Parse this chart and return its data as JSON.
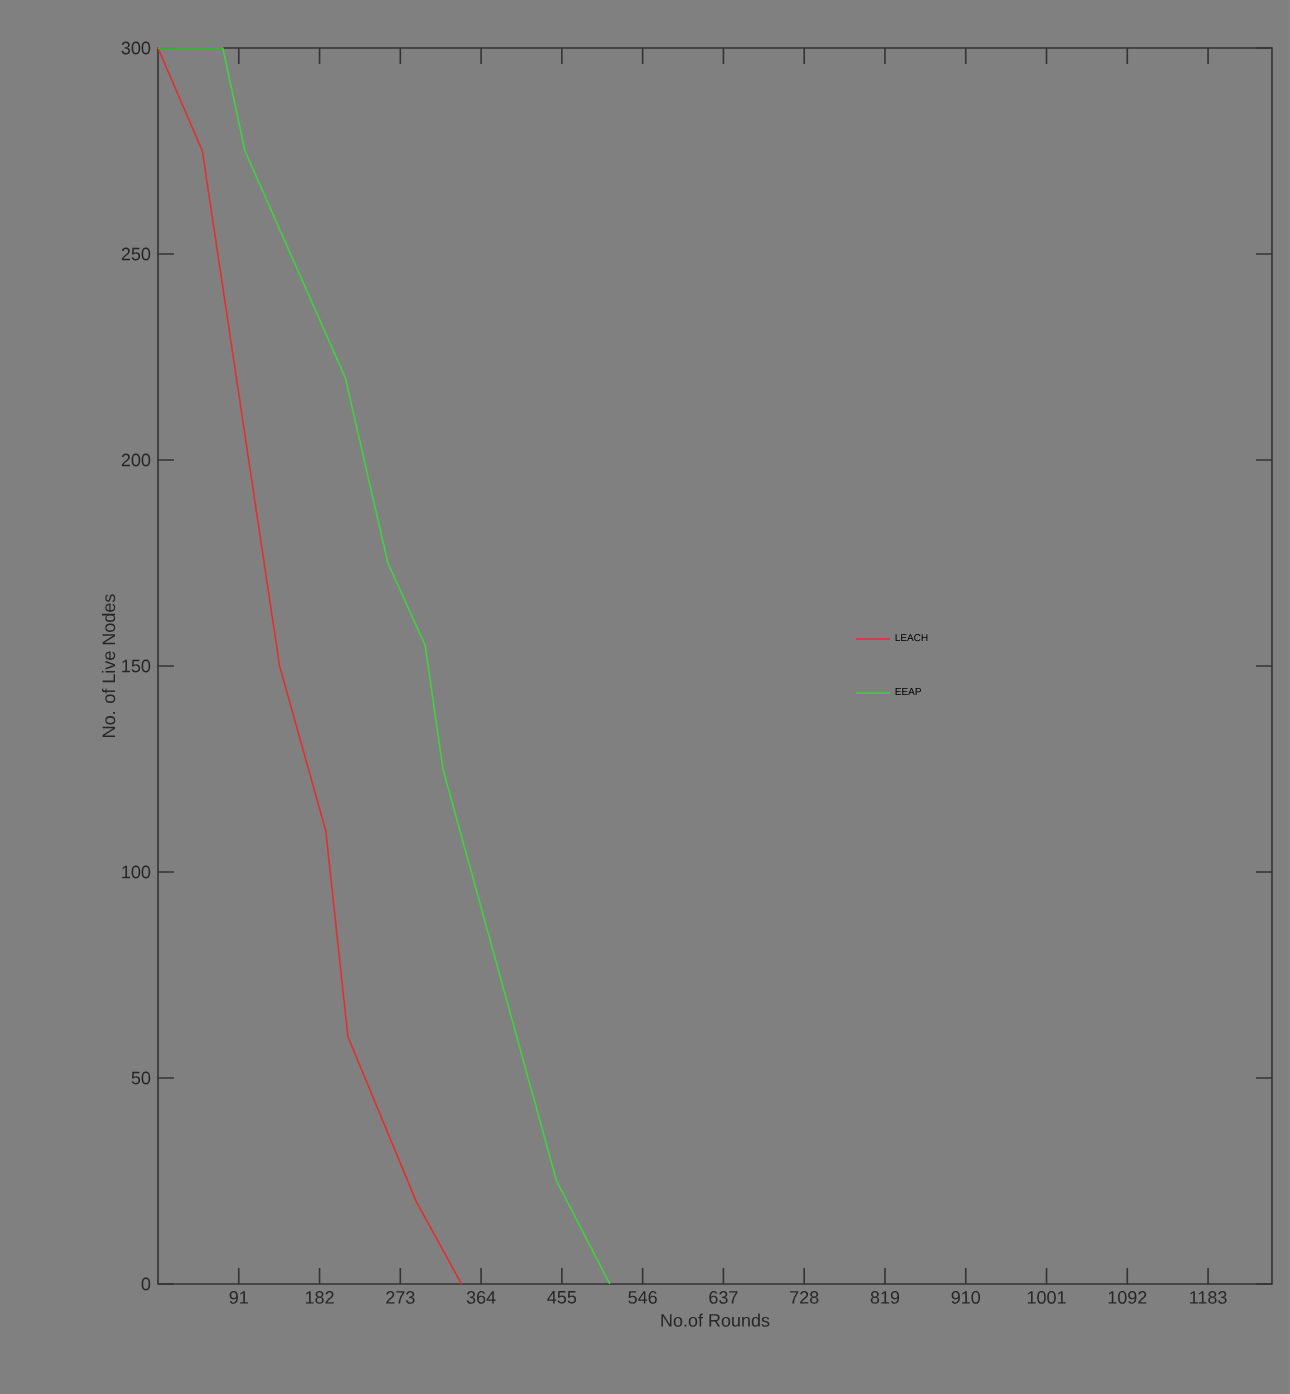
{
  "chart_data": {
    "type": "line",
    "xlabel": "No.of Rounds",
    "ylabel": "No. of Live Nodes",
    "xlim": [
      0,
      1255
    ],
    "xticks": [
      91,
      182,
      273,
      364,
      455,
      546,
      637,
      728,
      819,
      910,
      1001,
      1092,
      1183
    ],
    "ylim": [
      0,
      300
    ],
    "yticks": [
      0,
      50,
      100,
      150,
      200,
      250,
      300
    ],
    "grid": false,
    "legend": "right",
    "marker": "none",
    "line_style": "solid",
    "series": [
      {
        "name": "LEACH",
        "color": "#e03030",
        "x": [
          0,
          50,
          137,
          189,
          214,
          291,
          342
        ],
        "values": [
          300,
          275,
          150,
          110,
          60,
          20,
          0
        ]
      },
      {
        "name": "EEAP",
        "color": "#40d040",
        "x": [
          0,
          73,
          98,
          211,
          259,
          301,
          321,
          449,
          509
        ],
        "values": [
          300,
          300,
          275,
          220,
          175,
          155,
          125,
          25,
          0
        ]
      }
    ]
  }
}
